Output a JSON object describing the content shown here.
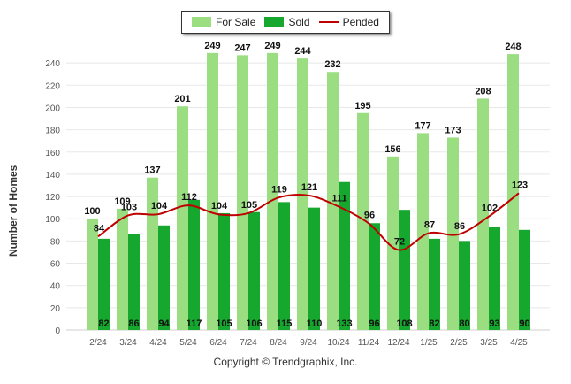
{
  "legend": {
    "for_sale_label": "For Sale",
    "sold_label": "Sold",
    "pended_label": "Pended"
  },
  "copyright": "Copyright © Trendgraphix, Inc.",
  "colors": {
    "for_sale": "#9bde82",
    "sold": "#16a82e",
    "pended": "#c00000",
    "grid": "#e8e8e8",
    "axis_text": "#555555"
  },
  "chart_data": {
    "type": "bar",
    "categories": [
      "2/24",
      "3/24",
      "4/24",
      "5/24",
      "6/24",
      "7/24",
      "8/24",
      "9/24",
      "10/24",
      "11/24",
      "12/24",
      "1/25",
      "2/25",
      "3/25",
      "4/25"
    ],
    "series": [
      {
        "name": "For Sale",
        "type": "bar",
        "values": [
          100,
          109,
          137,
          201,
          249,
          247,
          249,
          244,
          232,
          195,
          156,
          177,
          173,
          208,
          248
        ]
      },
      {
        "name": "Sold",
        "type": "bar",
        "values": [
          82,
          86,
          94,
          117,
          105,
          106,
          115,
          110,
          133,
          96,
          108,
          82,
          80,
          93,
          90
        ]
      },
      {
        "name": "Pended",
        "type": "line",
        "values": [
          84,
          103,
          104,
          112,
          104,
          105,
          119,
          121,
          111,
          96,
          72,
          87,
          86,
          102,
          123
        ]
      }
    ],
    "ylabel": "Number of Homes",
    "ylim": [
      0,
      260
    ],
    "yticks": [
      0,
      20,
      40,
      60,
      80,
      100,
      120,
      140,
      160,
      180,
      200,
      220,
      240
    ],
    "grid": true,
    "legend_position": "top-center"
  }
}
